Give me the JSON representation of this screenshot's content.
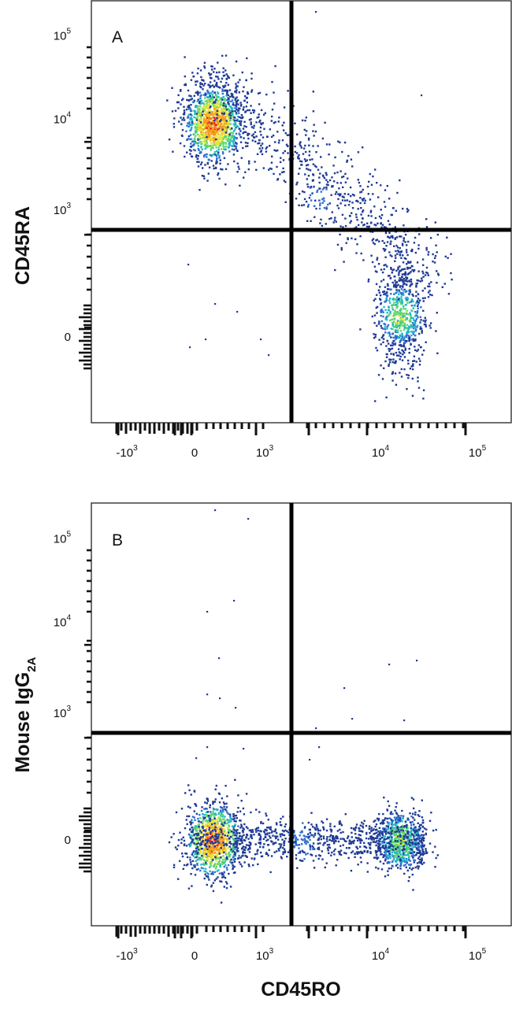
{
  "figure": {
    "xlabel": "CD45RO",
    "colors": {
      "frame": "#222222",
      "gate": "#000000",
      "density_scale": [
        "#1f3a93",
        "#2f6fd0",
        "#22b5c8",
        "#5fd66b",
        "#e6e63a",
        "#f59a1f",
        "#e8231e"
      ]
    }
  },
  "chart_data": [
    {
      "type": "scatter",
      "panel_label": "A",
      "ylabel": "CD45RA",
      "xlabel": "CD45RO",
      "x_scale": "biexponential",
      "y_scale": "biexponential",
      "x_tick_labels": [
        {
          "base": "-10",
          "exp": "3"
        },
        {
          "base": "0",
          "exp": ""
        },
        {
          "base": "10",
          "exp": "3"
        },
        {
          "base": "10",
          "exp": "4"
        },
        {
          "base": "10",
          "exp": "5"
        }
      ],
      "y_tick_labels": [
        {
          "base": "10",
          "exp": "5"
        },
        {
          "base": "10",
          "exp": "4"
        },
        {
          "base": "10",
          "exp": "3"
        },
        {
          "base": "0",
          "exp": ""
        }
      ],
      "quadrant_gate": {
        "x": 2000,
        "y": 700
      },
      "populations": [
        {
          "x": 100,
          "y": 40000,
          "count": 1200,
          "peak": "high"
        },
        {
          "x": 20000,
          "y": 150,
          "count": 700,
          "peak": "medium"
        },
        {
          "x": 3000,
          "y": 6000,
          "count": 800,
          "peak": "low"
        }
      ]
    },
    {
      "type": "scatter",
      "panel_label": "B",
      "ylabel": "Mouse IgG2A",
      "ylabel_parts": {
        "main": "Mouse IgG",
        "sub": "2A"
      },
      "xlabel": "CD45RO",
      "x_scale": "biexponential",
      "y_scale": "biexponential",
      "x_tick_labels": [
        {
          "base": "-10",
          "exp": "3"
        },
        {
          "base": "0",
          "exp": ""
        },
        {
          "base": "10",
          "exp": "3"
        },
        {
          "base": "10",
          "exp": "4"
        },
        {
          "base": "10",
          "exp": "5"
        }
      ],
      "y_tick_labels": [
        {
          "base": "10",
          "exp": "5"
        },
        {
          "base": "10",
          "exp": "4"
        },
        {
          "base": "10",
          "exp": "3"
        },
        {
          "base": "0",
          "exp": ""
        }
      ],
      "quadrant_gate": {
        "x": 2000,
        "y": 700
      },
      "populations": [
        {
          "x": 100,
          "y": 0,
          "count": 1000,
          "peak": "high"
        },
        {
          "x": 20000,
          "y": 0,
          "count": 700,
          "peak": "medium"
        },
        {
          "x": 2000,
          "y": 0,
          "count": 900,
          "peak": "low"
        }
      ]
    }
  ]
}
